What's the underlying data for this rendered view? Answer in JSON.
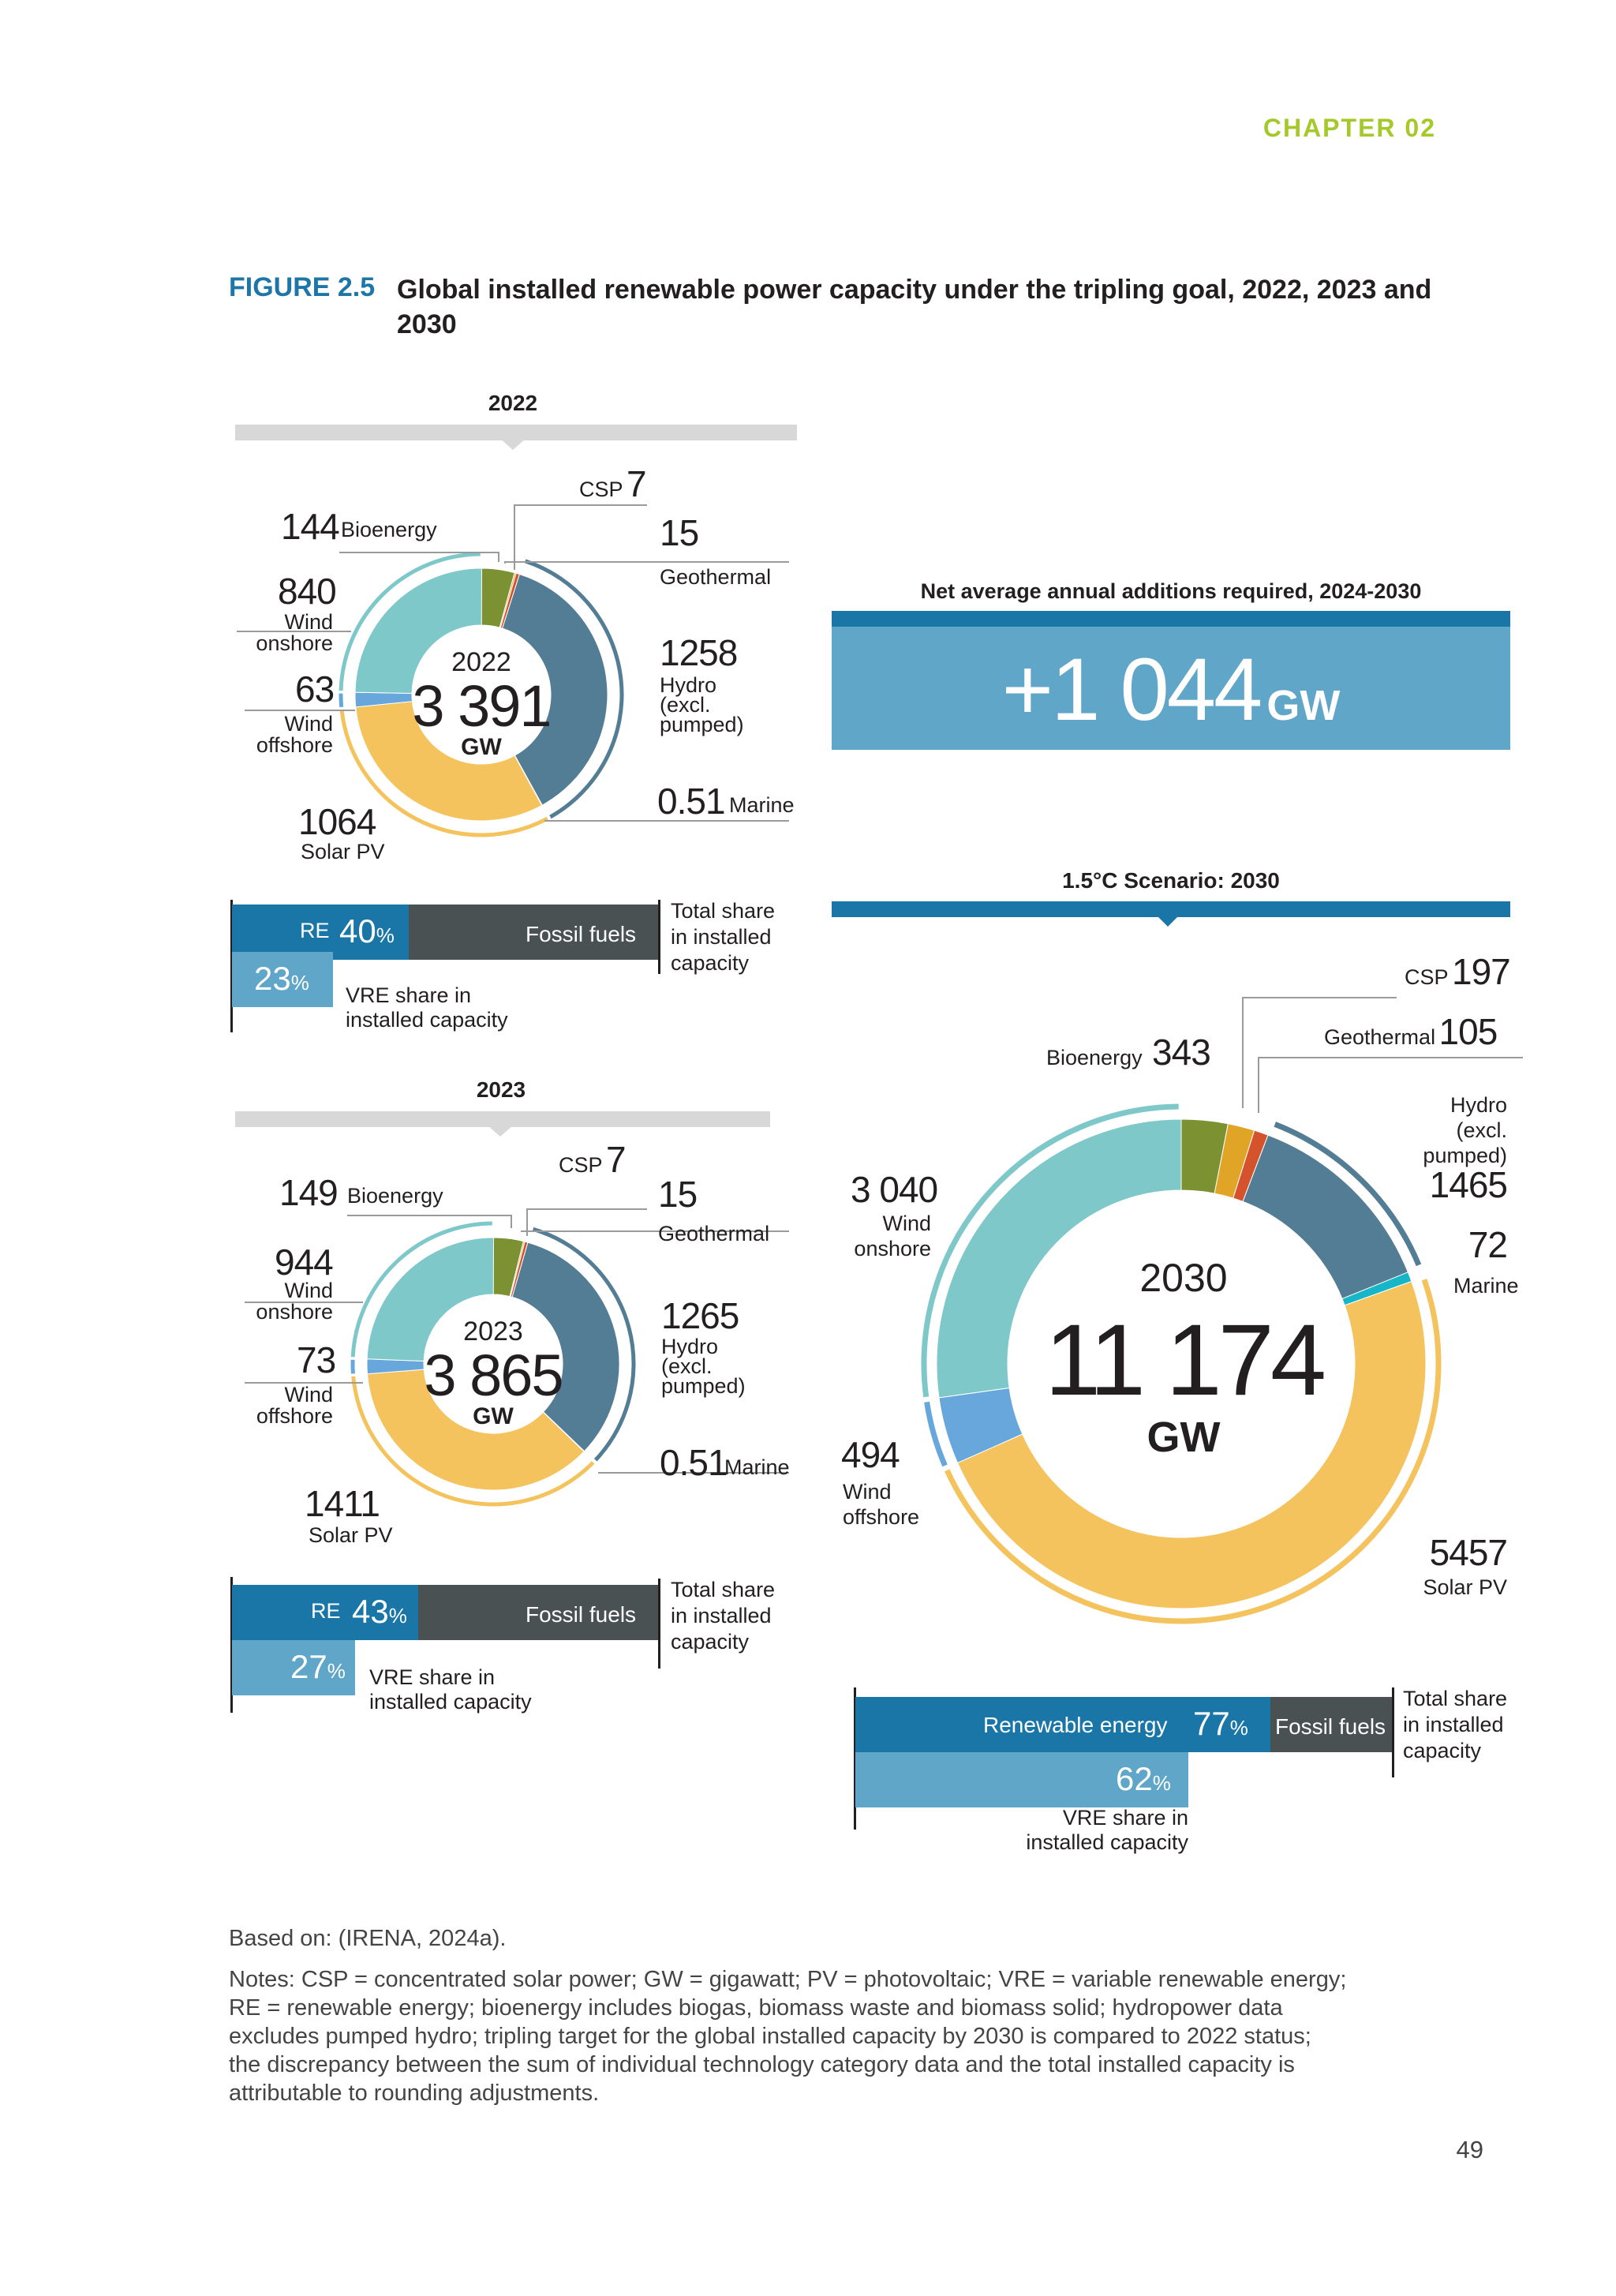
{
  "header": {
    "chapter": "CHAPTER 02"
  },
  "figure": {
    "label": "FIGURE 2.5",
    "title": "Global installed renewable power capacity under the tripling goal, 2022, 2023 and 2030"
  },
  "colors": {
    "bioenergy": "#7b9132",
    "csp": "#e0a526",
    "geothermal": "#d4522c",
    "hydro": "#527d94",
    "marine": "#16b6c8",
    "solar_pv": "#f5c35d",
    "wind_offshore": "#68a7dc",
    "wind_onshore": "#7ec8ca",
    "re_bar": "#1a76a7",
    "vre_bar": "#60a6c8",
    "fossil_bar": "#4a5152"
  },
  "chart_data": [
    {
      "type": "pie",
      "variant": "donut",
      "year": "2022",
      "center_year": "2022",
      "total": "3 391",
      "unit": "GW",
      "slices": [
        {
          "key": "bioenergy",
          "name": "Bioenergy",
          "value": 144,
          "label": "144"
        },
        {
          "key": "csp",
          "name": "CSP",
          "value": 7,
          "label": "7"
        },
        {
          "key": "geothermal",
          "name": "Geothermal",
          "value": 15,
          "label": "15"
        },
        {
          "key": "hydro",
          "name": "Hydro (excl. pumped)",
          "value": 1258,
          "label": "1258"
        },
        {
          "key": "marine",
          "name": "Marine",
          "value": 0.51,
          "label": "0.51"
        },
        {
          "key": "solar_pv",
          "name": "Solar PV",
          "value": 1064,
          "label": "1064"
        },
        {
          "key": "wind_offshore",
          "name": "Wind offshore",
          "value": 63,
          "label": "63"
        },
        {
          "key": "wind_onshore",
          "name": "Wind onshore",
          "value": 840,
          "label": "840"
        }
      ],
      "share": {
        "re_label": "RE",
        "re_pct": 40,
        "fossil_label": "Fossil fuels",
        "vre_pct": 23,
        "total_share_label": "Total share in installed capacity",
        "vre_label": "VRE share in installed capacity"
      }
    },
    {
      "type": "pie",
      "variant": "donut",
      "year": "2023",
      "center_year": "2023",
      "total": "3 865",
      "unit": "GW",
      "slices": [
        {
          "key": "bioenergy",
          "name": "Bioenergy",
          "value": 149,
          "label": "149"
        },
        {
          "key": "csp",
          "name": "CSP",
          "value": 7,
          "label": "7"
        },
        {
          "key": "geothermal",
          "name": "Geothermal",
          "value": 15,
          "label": "15"
        },
        {
          "key": "hydro",
          "name": "Hydro (excl. pumped)",
          "value": 1265,
          "label": "1265"
        },
        {
          "key": "marine",
          "name": "Marine",
          "value": 0.51,
          "label": "0.51"
        },
        {
          "key": "solar_pv",
          "name": "Solar PV",
          "value": 1411,
          "label": "1411"
        },
        {
          "key": "wind_offshore",
          "name": "Wind offshore",
          "value": 73,
          "label": "73"
        },
        {
          "key": "wind_onshore",
          "name": "Wind onshore",
          "value": 944,
          "label": "944"
        }
      ],
      "share": {
        "re_label": "RE",
        "re_pct": 43,
        "fossil_label": "Fossil fuels",
        "vre_pct": 27,
        "total_share_label": "Total share in installed capacity",
        "vre_label": "VRE share in installed capacity"
      }
    },
    {
      "type": "pie",
      "variant": "donut",
      "year": "2030",
      "scenario_title": "1.5°C Scenario: 2030",
      "center_year": "2030",
      "total": "11 174",
      "unit": "GW",
      "slices": [
        {
          "key": "bioenergy",
          "name": "Bioenergy",
          "value": 343,
          "label": "343"
        },
        {
          "key": "csp",
          "name": "CSP",
          "value": 197,
          "label": "197"
        },
        {
          "key": "geothermal",
          "name": "Geothermal",
          "value": 105,
          "label": "105"
        },
        {
          "key": "hydro",
          "name": "Hydro (excl. pumped)",
          "value": 1465,
          "label": "1465"
        },
        {
          "key": "marine",
          "name": "Marine",
          "value": 72,
          "label": "72"
        },
        {
          "key": "solar_pv",
          "name": "Solar PV",
          "value": 5457,
          "label": "5457"
        },
        {
          "key": "wind_offshore",
          "name": "Wind offshore",
          "value": 494,
          "label": "494"
        },
        {
          "key": "wind_onshore",
          "name": "Wind onshore",
          "value": 3040,
          "label": "3 040"
        }
      ],
      "share": {
        "re_label": "Renewable energy",
        "re_pct": 77,
        "fossil_label": "Fossil fuels",
        "vre_pct": 62,
        "total_share_label": "Total share in installed capacity",
        "vre_label": "VRE share in installed capacity"
      }
    }
  ],
  "net_additions": {
    "title": "Net average annual additions required, 2024-2030",
    "value": "+1 044",
    "unit": "GW"
  },
  "labels": {
    "bioenergy": "Bioenergy",
    "csp": "CSP",
    "geothermal": "Geothermal",
    "hydro_1": "Hydro",
    "hydro_2": "(excl.",
    "hydro_3": "pumped)",
    "marine": "Marine",
    "solar": "Solar PV",
    "wind": "Wind",
    "onshore": "onshore",
    "offshore": "offshore",
    "pct": "%",
    "total_1": "Total share",
    "total_2": "in installed",
    "total_3": "capacity",
    "vre_1": "VRE share in",
    "vre_2": "installed capacity"
  },
  "source": "Based on: (IRENA, 2024a).",
  "notes": [
    "Notes: CSP = concentrated solar power; GW = gigawatt; PV = photovoltaic; VRE = variable renewable energy;",
    "RE = renewable energy; bioenergy includes biogas, biomass waste and biomass solid; hydropower data",
    "excludes pumped hydro; tripling target for the global installed capacity by 2030 is compared to 2022 status;",
    "the discrepancy between the sum of individual technology category data and the total installed capacity is",
    "attributable to rounding adjustments."
  ],
  "page_number": "49"
}
